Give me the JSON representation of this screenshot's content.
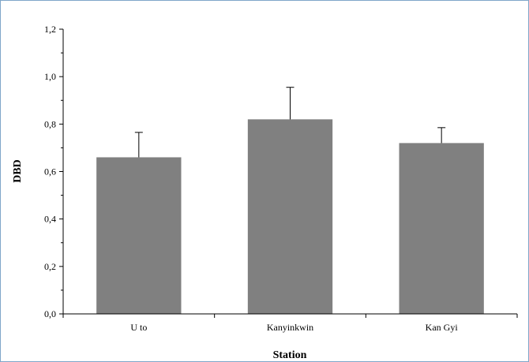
{
  "chart_data": {
    "type": "bar",
    "categories": [
      "U to",
      "Kanyinkwin",
      "Kan Gyi"
    ],
    "series": [
      {
        "values": [
          0.66,
          0.82,
          0.72
        ],
        "error_plus": [
          0.105,
          0.135,
          0.065
        ]
      }
    ],
    "xlabel": "Station",
    "ylabel": "DBD",
    "ylim": [
      0,
      1.2
    ],
    "yticks": [
      "0,0",
      "0,2",
      "0,4",
      "0,6",
      "0,8",
      "1,0",
      "1,2"
    ],
    "grid": false,
    "legend": "none",
    "colors": {
      "bar": "#808080",
      "axis": "#000000",
      "border": "#7fa6c9"
    }
  }
}
